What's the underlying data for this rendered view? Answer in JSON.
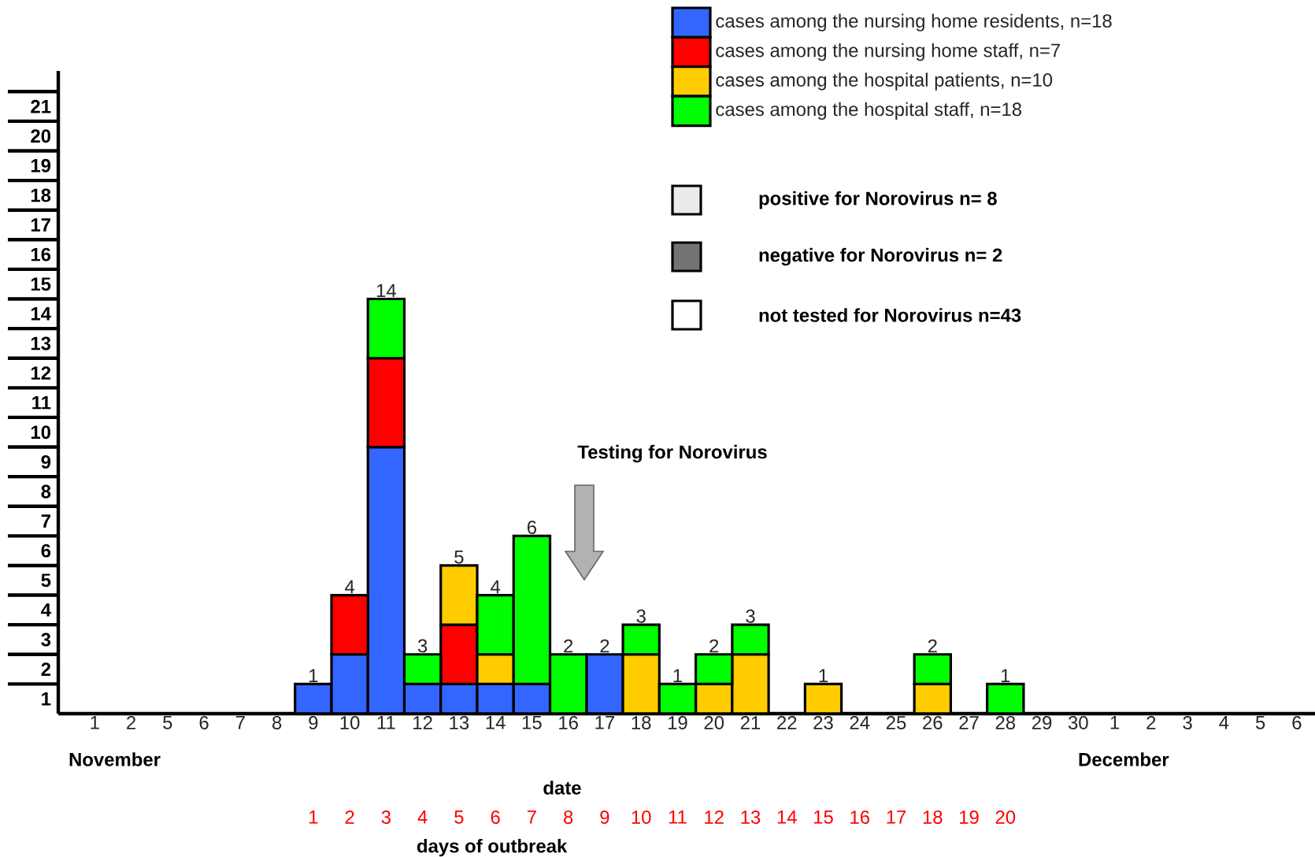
{
  "chart_data": {
    "type": "bar",
    "stacked": true,
    "xlabel": "date",
    "categories": [
      "1",
      "2",
      "5",
      "6",
      "7",
      "8",
      "9",
      "10",
      "11",
      "12",
      "13",
      "14",
      "15",
      "16",
      "17",
      "18",
      "19",
      "20",
      "21",
      "22",
      "23",
      "24",
      "25",
      "26",
      "27",
      "28",
      "29",
      "30",
      "1",
      "2",
      "3",
      "4",
      "5",
      "6"
    ],
    "series": [
      {
        "name": "cases among the nursing home residents, n=18",
        "color": "#3366ff",
        "values": [
          0,
          0,
          0,
          0,
          0,
          0,
          1,
          2,
          9,
          1,
          1,
          1,
          1,
          0,
          2,
          0,
          0,
          0,
          0,
          0,
          0,
          0,
          0,
          0,
          0,
          0,
          0,
          0,
          0,
          0,
          0,
          0,
          0,
          0
        ]
      },
      {
        "name": "cases among the nursing home staff, n=7",
        "color": "#ff0000",
        "values": [
          0,
          0,
          0,
          0,
          0,
          0,
          0,
          2,
          3,
          0,
          2,
          0,
          0,
          0,
          0,
          0,
          0,
          0,
          0,
          0,
          0,
          0,
          0,
          0,
          0,
          0,
          0,
          0,
          0,
          0,
          0,
          0,
          0,
          0
        ]
      },
      {
        "name": "cases among the hospital patients, n=10",
        "color": "#ffcc00",
        "values": [
          0,
          0,
          0,
          0,
          0,
          0,
          0,
          0,
          0,
          0,
          2,
          1,
          0,
          0,
          0,
          2,
          0,
          1,
          2,
          0,
          1,
          0,
          0,
          1,
          0,
          0,
          0,
          0,
          0,
          0,
          0,
          0,
          0,
          0
        ]
      },
      {
        "name": "cases among the hospital staff, n=18",
        "color": "#00ff00",
        "values": [
          0,
          0,
          0,
          0,
          0,
          0,
          0,
          0,
          2,
          1,
          0,
          2,
          5,
          2,
          0,
          1,
          1,
          1,
          1,
          0,
          0,
          0,
          0,
          1,
          0,
          1,
          0,
          0,
          0,
          0,
          0,
          0,
          0,
          0
        ]
      }
    ],
    "totals": [
      null,
      null,
      null,
      null,
      null,
      null,
      "1",
      "4",
      "14",
      "3",
      "5",
      "4",
      "6",
      "2",
      "2",
      "3",
      "1",
      "2",
      "3",
      null,
      "1",
      null,
      null,
      "2",
      null,
      "1",
      null,
      null,
      null,
      null,
      null,
      null,
      null,
      null
    ],
    "ylim": [
      0,
      21.7
    ],
    "yticks": [
      {
        "value": 0.5,
        "label": "1"
      },
      {
        "value": 1.5,
        "label": "2"
      },
      {
        "value": 2.5,
        "label": "3"
      },
      {
        "value": 3.5,
        "label": "4"
      },
      {
        "value": 4.5,
        "label": "5"
      },
      {
        "value": 5.5,
        "label": "6"
      },
      {
        "value": 6.5,
        "label": "7"
      },
      {
        "value": 7.5,
        "label": "8"
      },
      {
        "value": 8.5,
        "label": "9"
      },
      {
        "value": 9.5,
        "label": "10"
      },
      {
        "value": 10.5,
        "label": "11"
      },
      {
        "value": 11.5,
        "label": "12"
      },
      {
        "value": 12.5,
        "label": "13"
      },
      {
        "value": 13.5,
        "label": "14"
      },
      {
        "value": 14.5,
        "label": "15"
      },
      {
        "value": 15.5,
        "label": "16"
      },
      {
        "value": 16.5,
        "label": "17"
      },
      {
        "value": 17.5,
        "label": "18"
      },
      {
        "value": 18.5,
        "label": "19"
      },
      {
        "value": 19.5,
        "label": "20"
      },
      {
        "value": 20.5,
        "label": "21"
      }
    ],
    "legend": "top right",
    "annotations": [
      "November",
      "December",
      "positive for Norovirus  n= 8",
      "negative for Norovirus  n= 2",
      "not tested for Norovirus n=43",
      "Testing for Norovirus"
    ],
    "x2label": "days of outbreak",
    "x2lim": [
      -6,
      28.5
    ],
    "x2ticks": [
      1,
      2,
      3,
      4,
      5,
      6,
      7,
      8,
      9,
      10,
      11,
      12,
      13,
      14,
      15,
      16,
      17,
      18,
      19,
      20
    ]
  }
}
